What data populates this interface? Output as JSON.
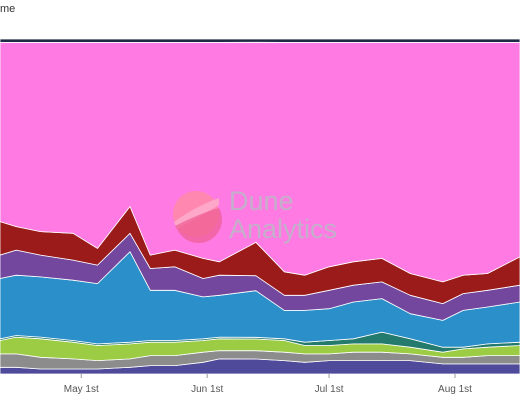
{
  "title": "me",
  "watermark": {
    "line1": "Dune",
    "line2": "Analytics",
    "logo_icon": "dune-logo-icon",
    "logo_color": "#ff6b8a"
  },
  "chart_data": {
    "type": "area",
    "stacking": "percent",
    "title": "me",
    "xlabel": "",
    "ylabel": "",
    "ylim": [
      0,
      100
    ],
    "grid": false,
    "legend": "none",
    "x_range": [
      "2023-04-11",
      "2023-08-17"
    ],
    "x_ticks": [
      {
        "label": "May 1st",
        "date": "2023-05-01"
      },
      {
        "label": "Jun 1st",
        "date": "2023-06-01"
      },
      {
        "label": "Jul 1st",
        "date": "2023-07-01"
      },
      {
        "label": "Aug 1st",
        "date": "2023-08-01"
      }
    ],
    "x": [
      "2023-04-11",
      "2023-04-15",
      "2023-04-21",
      "2023-04-29",
      "2023-05-05",
      "2023-05-13",
      "2023-05-18",
      "2023-05-24",
      "2023-05-31",
      "2023-06-04",
      "2023-06-13",
      "2023-06-20",
      "2023-06-25",
      "2023-07-01",
      "2023-07-07",
      "2023-07-14",
      "2023-07-21",
      "2023-07-29",
      "2023-08-03",
      "2023-08-09",
      "2023-08-17"
    ],
    "series": [
      {
        "color": "#4f4a9a",
        "values": [
          2.0,
          2.0,
          1.5,
          1.5,
          1.5,
          2.0,
          2.5,
          2.5,
          3.5,
          4.5,
          4.5,
          4.0,
          3.5,
          4.0,
          4.0,
          4.0,
          4.0,
          3.0,
          3.0,
          3.0,
          3.0
        ]
      },
      {
        "color": "#8c8c8c",
        "values": [
          4.0,
          4.0,
          3.5,
          3.0,
          2.5,
          2.5,
          3.0,
          3.0,
          3.0,
          2.5,
          2.5,
          2.5,
          2.5,
          2.0,
          2.5,
          2.5,
          2.0,
          2.0,
          2.0,
          2.5,
          2.5
        ]
      },
      {
        "color": "#9ccc44",
        "values": [
          4.0,
          5.0,
          5.5,
          5.0,
          4.5,
          4.5,
          4.0,
          4.0,
          3.5,
          3.5,
          3.5,
          3.5,
          2.5,
          2.5,
          2.5,
          2.5,
          2.0,
          1.5,
          2.5,
          2.5,
          3.0
        ]
      },
      {
        "color": "#257a6e",
        "values": [
          0.5,
          0.5,
          0.5,
          0.5,
          0.5,
          0.5,
          0.5,
          0.5,
          0.5,
          0.5,
          0.5,
          0.5,
          1.0,
          1.5,
          1.5,
          3.5,
          2.5,
          1.5,
          0.5,
          1.0,
          1.0
        ]
      },
      {
        "color": "#2b8fc9",
        "values": [
          18.0,
          18.0,
          18.0,
          18.0,
          18.0,
          27.0,
          15.0,
          15.0,
          12.5,
          12.5,
          14.0,
          8.5,
          9.5,
          9.5,
          11.0,
          10.0,
          7.5,
          8.0,
          11.0,
          11.0,
          12.0
        ]
      },
      {
        "color": "#74479e",
        "values": [
          7.0,
          7.5,
          6.5,
          6.0,
          5.5,
          5.5,
          6.5,
          7.0,
          5.5,
          6.0,
          4.5,
          4.5,
          4.5,
          5.5,
          5.0,
          5.0,
          5.5,
          5.0,
          5.0,
          5.0,
          5.0
        ]
      },
      {
        "color": "#9b1a1a",
        "values": [
          10.0,
          7.0,
          7.0,
          8.0,
          5.0,
          8.0,
          4.0,
          5.0,
          6.0,
          4.0,
          10.0,
          7.0,
          6.0,
          7.0,
          7.0,
          7.0,
          6.5,
          6.5,
          5.5,
          5.0,
          8.5
        ]
      },
      {
        "color": "#ff7be3",
        "values": [
          53.5,
          55.0,
          56.5,
          57.0,
          61.5,
          49.0,
          63.5,
          62.0,
          64.5,
          65.5,
          60.0,
          68.5,
          69.5,
          67.0,
          65.5,
          64.5,
          69.0,
          71.5,
          69.5,
          69.0,
          64.0
        ]
      },
      {
        "color": "#1f2a44",
        "values": [
          1.0,
          1.0,
          1.0,
          1.0,
          1.0,
          1.0,
          1.0,
          1.0,
          1.0,
          1.0,
          1.0,
          1.0,
          1.0,
          1.0,
          1.0,
          1.0,
          1.0,
          1.0,
          1.0,
          1.0,
          1.0
        ]
      }
    ]
  }
}
